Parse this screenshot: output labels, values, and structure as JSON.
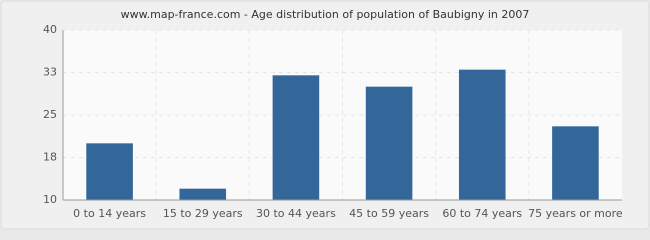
{
  "chart_data": {
    "type": "bar",
    "title": "www.map-france.com - Age distribution of population of Baubigny in 2007",
    "categories": [
      "0 to 14 years",
      "15 to 29 years",
      "30 to 44 years",
      "45 to 59 years",
      "60 to 74 years",
      "75 years or more"
    ],
    "values": [
      20,
      12,
      32,
      30,
      33,
      23
    ],
    "color": "#336699",
    "ylim": [
      10,
      40
    ],
    "yticks": [
      10,
      {
        "value": 17.5,
        "label": "18"
      },
      25,
      {
        "value": 32.5,
        "label": "33"
      },
      40
    ],
    "grid": true
  }
}
